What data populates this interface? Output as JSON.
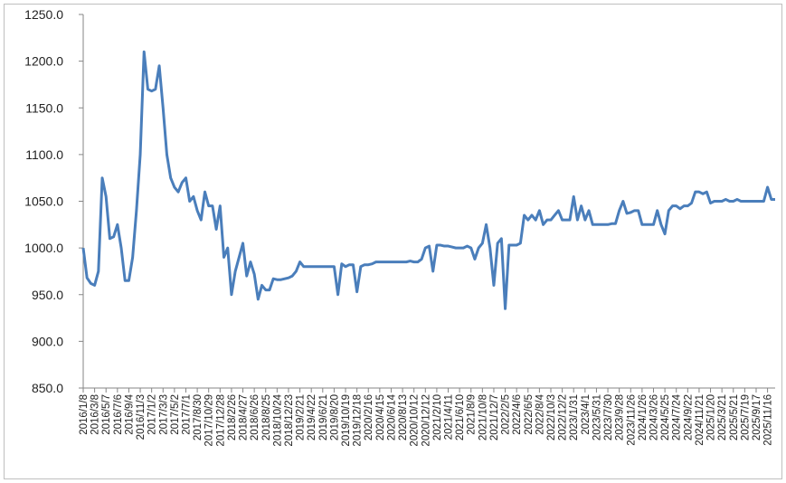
{
  "chart_data": {
    "type": "line",
    "categories": [
      "2016/1/8",
      null,
      null,
      "2016/3/8",
      null,
      null,
      "2016/5/7",
      null,
      null,
      "2016/7/6",
      null,
      null,
      "2016/9/4",
      null,
      null,
      "2016/11/3",
      null,
      null,
      "2017/1/2",
      null,
      null,
      "2017/3/3",
      null,
      null,
      "2017/5/2",
      null,
      null,
      "2017/7/1",
      null,
      null,
      "2017/8/30",
      null,
      null,
      "2017/10/29",
      null,
      null,
      "2017/12/28",
      null,
      null,
      "2018/2/26",
      null,
      null,
      "2018/4/27",
      null,
      null,
      "2018/6/26",
      null,
      null,
      "2018/8/25",
      null,
      null,
      "2018/10/24",
      null,
      null,
      "2018/12/23",
      null,
      null,
      "2019/2/21",
      null,
      null,
      "2019/4/22",
      null,
      null,
      "2019/6/21",
      null,
      null,
      "2019/8/20",
      null,
      null,
      "2019/10/19",
      null,
      null,
      "2019/12/18",
      null,
      null,
      "2020/2/16",
      null,
      null,
      "2020/4/15",
      null,
      null,
      "2020/6/14",
      null,
      null,
      "2020/8/13",
      null,
      null,
      "2020/10/12",
      null,
      null,
      "2020/12/12",
      null,
      null,
      "2021/2/10",
      null,
      null,
      "2021/4/11",
      null,
      null,
      "2021/6/10",
      null,
      null,
      "2021/8/9",
      null,
      null,
      "2021/10/8",
      null,
      null,
      "2021/12/7",
      null,
      null,
      "2022/2/5",
      null,
      null,
      "2022/4/6",
      null,
      null,
      "2022/6/5",
      null,
      null,
      "2022/8/4",
      null,
      null,
      "2022/10/3",
      null,
      null,
      "2022/12/2",
      null,
      null,
      "2023/1/31",
      null,
      null,
      "2023/4/1",
      null,
      null,
      "2023/5/31",
      null,
      null,
      "2023/7/30",
      null,
      null,
      "2023/9/28",
      null,
      null,
      "2023/11/26",
      null,
      null,
      "2024/1/26",
      null,
      null,
      "2024/3/26",
      null,
      null,
      "2024/5/25",
      null,
      null,
      "2024/7/24",
      null,
      null,
      "2024/9/22",
      null,
      null,
      "2024/11/21",
      null,
      null,
      "2025/1/20",
      null,
      null,
      "2025/3/21",
      null,
      null,
      "2025/5/21",
      null,
      null,
      "2025/7/19",
      null,
      null,
      "2025/9/17",
      null,
      null,
      "2025/11/16",
      null,
      null
    ],
    "series": [
      {
        "color": "#4a7ebb",
        "values": [
          1000,
          968,
          962,
          960,
          975,
          1075,
          1055,
          1010,
          1012,
          1025,
          1000,
          965,
          965,
          990,
          1040,
          1100,
          1210,
          1170,
          1168,
          1170,
          1195,
          1150,
          1100,
          1075,
          1065,
          1060,
          1070,
          1075,
          1050,
          1055,
          1040,
          1030,
          1060,
          1045,
          1045,
          1020,
          1045,
          990,
          1000,
          950,
          975,
          990,
          1005,
          970,
          985,
          972,
          945,
          960,
          955,
          955,
          967,
          966,
          966,
          967,
          968,
          970,
          975,
          985,
          980,
          980,
          980,
          980,
          980,
          980,
          980,
          980,
          980,
          950,
          983,
          980,
          982,
          982,
          953,
          980,
          982,
          982,
          983,
          985,
          985,
          985,
          985,
          985,
          985,
          985,
          985,
          985,
          986,
          985,
          985,
          988,
          1000,
          1002,
          975,
          1003,
          1003,
          1002,
          1002,
          1001,
          1000,
          1000,
          1000,
          1002,
          1000,
          988,
          1000,
          1005,
          1025,
          1000,
          960,
          1005,
          1010,
          935,
          1003,
          1003,
          1003,
          1005,
          1035,
          1030,
          1035,
          1030,
          1040,
          1025,
          1030,
          1030,
          1035,
          1040,
          1030,
          1030,
          1030,
          1055,
          1030,
          1045,
          1030,
          1040,
          1025,
          1025,
          1025,
          1025,
          1025,
          1026,
          1026,
          1040,
          1050,
          1037,
          1038,
          1040,
          1040,
          1025,
          1025,
          1025,
          1025,
          1040,
          1025,
          1015,
          1040,
          1045,
          1045,
          1042,
          1045,
          1045,
          1048,
          1060,
          1060,
          1058,
          1060,
          1048,
          1050,
          1050,
          1050,
          1052,
          1050,
          1050,
          1052,
          1050,
          1050,
          1050,
          1050,
          1050,
          1050,
          1050,
          1065,
          1052,
          1052
        ]
      }
    ],
    "ylim": [
      850,
      1250
    ],
    "yticks": [
      {
        "value": 850,
        "label": "850.0"
      },
      {
        "value": 900,
        "label": "900.0"
      },
      {
        "value": 950,
        "label": "950.0"
      },
      {
        "value": 1000,
        "label": "1000.0"
      },
      {
        "value": 1050,
        "label": "1050.0"
      },
      {
        "value": 1100,
        "label": "1100.0"
      },
      {
        "value": 1150,
        "label": "1150.0"
      },
      {
        "value": 1200,
        "label": "1200.0"
      },
      {
        "value": 1250,
        "label": "1250.0"
      }
    ],
    "grid": false
  }
}
